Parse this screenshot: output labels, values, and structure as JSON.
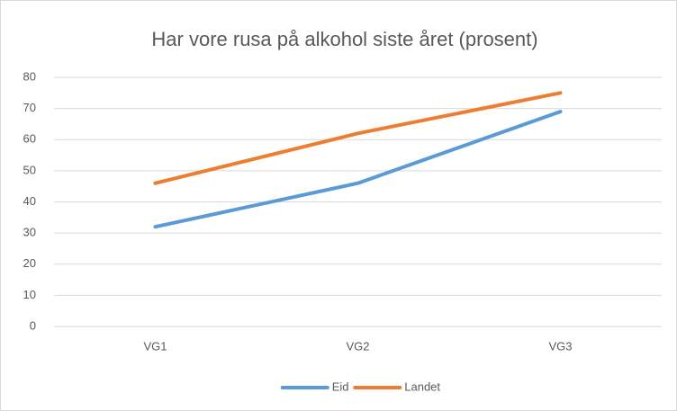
{
  "chart_data": {
    "type": "line",
    "title": "Har vore rusa på alkohol siste året (prosent)",
    "categories": [
      "VG1",
      "VG2",
      "VG3"
    ],
    "series": [
      {
        "name": "Eid",
        "color": "#5b9bd5",
        "values": [
          32,
          46,
          69
        ]
      },
      {
        "name": "Landet",
        "color": "#ed7d31",
        "values": [
          46,
          62,
          75
        ]
      }
    ],
    "ylim": [
      0,
      80
    ],
    "yticks": [
      0,
      10,
      20,
      30,
      40,
      50,
      60,
      70,
      80
    ],
    "grid": true,
    "legend": "bottom"
  }
}
